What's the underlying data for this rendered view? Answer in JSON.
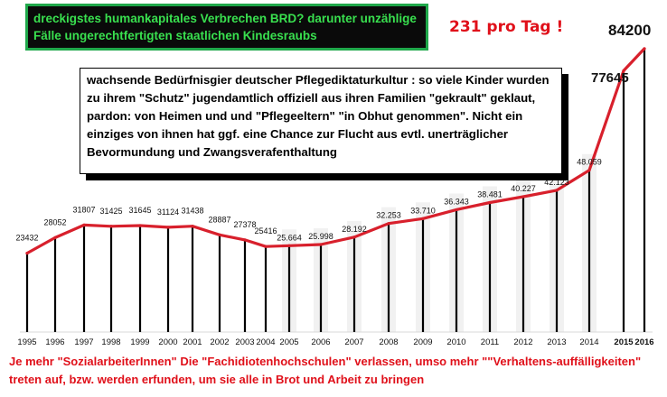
{
  "header": {
    "title": "dreckigstes humankapitales Verbrechen BRD? darunter unzählige Fälle ungerechtfertigten staatlichen Kindesraubs",
    "rate": "231 pro Tag !"
  },
  "info_box": {
    "text": "wachsende Bedürfnisgier deutscher Pflegediktaturkultur : so viele Kinder wurden zu ihrem  \"Schutz\" jugendamtlich offiziell  aus ihren Familien \"gekrault\" geklaut, pardon: von Heimen und und \"Pflegeeltern\" \"in Obhut genommen\". Nicht ein einziges von ihnen hat ggf. eine Chance zur Flucht aus evtl. unerträglicher Bevormundung und Zwangsverafenthaltung"
  },
  "footer": {
    "text": "Je mehr \"SozialarbeiterInnen\" Die \"Fachidiotenhochschulen\" verlassen, umso mehr \"\"Verhaltens-auffälligkeiten\" treten auf, bzw. werden erfunden, um sie alle in Brot und Arbeit zu bringen"
  },
  "colors": {
    "line": "#d8202c",
    "bar": "#000000",
    "title_bg": "#0a0a0a",
    "title_text": "#39e04f",
    "title_border": "#1fa84a",
    "accent_red": "#e0101a"
  },
  "chart_data": {
    "type": "line",
    "title": "",
    "xlabel": "",
    "ylabel": "",
    "ylim": [
      0,
      85000
    ],
    "grid": false,
    "legend": "none",
    "x": [
      "1995",
      "1996",
      "1997",
      "1998",
      "1999",
      "2000",
      "2001",
      "2002",
      "2003",
      "2004",
      "2005",
      "2006",
      "2007",
      "2008",
      "2009",
      "2010",
      "2011",
      "2012",
      "2013",
      "2014",
      "2015",
      "2016"
    ],
    "series": [
      {
        "values": [
          23432,
          28052,
          31807,
          31425,
          31645,
          31124,
          31438,
          28887,
          27378,
          25416,
          25664,
          25998,
          28192,
          32253,
          33710,
          36343,
          38481,
          40227,
          42123,
          48059,
          77645,
          84200
        ]
      }
    ],
    "value_labels": [
      "23432",
      "28052",
      "31807",
      "31425",
      "31645",
      "31124",
      "31438",
      "28887",
      "27378",
      "25416",
      "25.664",
      "25.998",
      "28.192",
      "32.253",
      "33.710",
      "36.343",
      "38.481",
      "40.227",
      "42.123",
      "48.059",
      "77645",
      "84200"
    ]
  }
}
